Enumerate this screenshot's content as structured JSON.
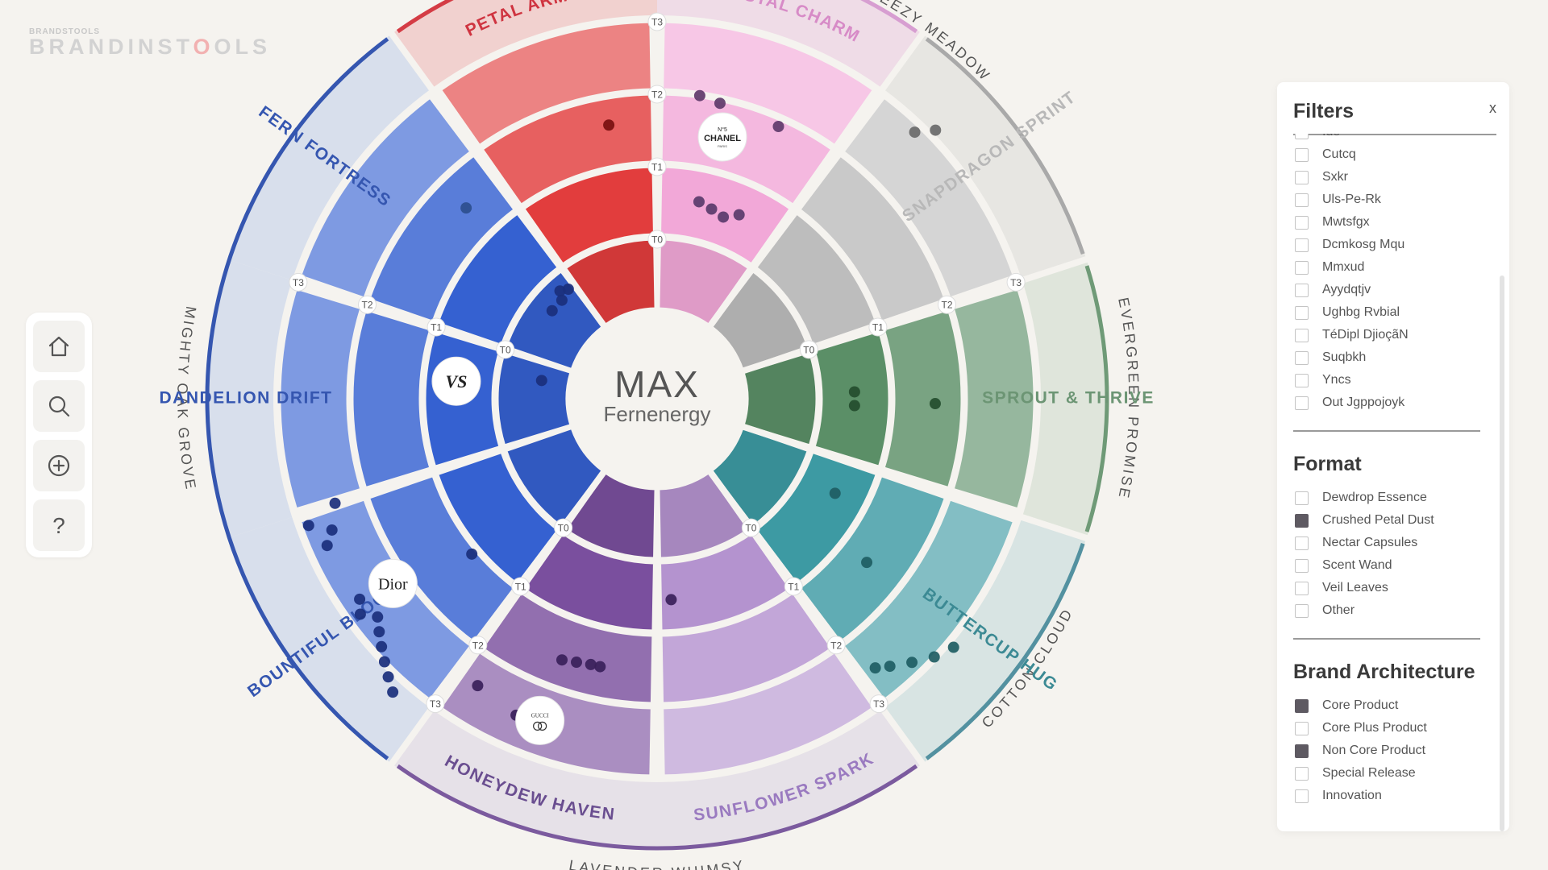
{
  "logo": {
    "top_text": "BRANDSTOOLS",
    "prefix": "BRANDINST",
    "accent": "O",
    "suffix": "OLS"
  },
  "nav": {
    "items": [
      {
        "icon": "home-icon"
      },
      {
        "icon": "search-icon"
      },
      {
        "icon": "plus-circle-icon"
      },
      {
        "icon": "help-icon"
      }
    ]
  },
  "wheel": {
    "center_title": "MAX",
    "center_subtitle": "Fernenergy",
    "tiers": [
      "T0",
      "T1",
      "T2",
      "T3"
    ],
    "outer_labels": [
      "MIGHTY OAK GROVE",
      "BREEZY MEADOW",
      "EVERGREEN PROMISE",
      "COTTON CLOUD",
      "LAVENDER WHIMSY"
    ],
    "inner_labels": [
      "PETAL ARMOR",
      "CRYSTAL CHARM",
      "SNAPDRAGON SPRINT",
      "SPROUT & THRIVE",
      "BUTTERCUP HUG",
      "SUNFLOWER SPARK",
      "HONEYDEW HAVEN",
      "BOUNTIFUL BLOOM",
      "DANDELION DRIFT",
      "FERN FORTRESS"
    ],
    "logos": [
      "CHANEL",
      "N°5",
      "PARIS",
      "VS",
      "Dior",
      "GUCCI"
    ],
    "colors": {
      "red": "#e23d3d",
      "pink": "#f2a8d8",
      "gray": "#bdbdbd",
      "green": "#5b8f67",
      "teal": "#3d9aa3",
      "purple": "#7a4f9e",
      "blue": "#3561d1"
    }
  },
  "filters": {
    "title": "Filters",
    "close": "x",
    "top_options": [
      {
        "label": "Ido",
        "checked": false
      },
      {
        "label": "Cutcq",
        "checked": false
      },
      {
        "label": "Sxkr",
        "checked": false
      },
      {
        "label": "Uls-Pe-Rk",
        "checked": false
      },
      {
        "label": "Mwtsfgx",
        "checked": false
      },
      {
        "label": "Dcmkosg Mqu",
        "checked": false
      },
      {
        "label": "Mmxud",
        "checked": false
      },
      {
        "label": "Ayydqtjv",
        "checked": false
      },
      {
        "label": "Ughbg Rvbial",
        "checked": false
      },
      {
        "label": "TéDipl DjiоçãN",
        "checked": false
      },
      {
        "label": "Suqbkh",
        "checked": false
      },
      {
        "label": "Yncs",
        "checked": false
      },
      {
        "label": "Out Jgppojoyk",
        "checked": false
      }
    ],
    "format": {
      "title": "Format",
      "options": [
        {
          "label": "Dewdrop Essence",
          "checked": false
        },
        {
          "label": "Crushed Petal Dust",
          "checked": true
        },
        {
          "label": "Nectar Capsules",
          "checked": false
        },
        {
          "label": "Scent Wand",
          "checked": false
        },
        {
          "label": "Veil Leaves",
          "checked": false
        },
        {
          "label": "Other",
          "checked": false
        }
      ]
    },
    "brand_architecture": {
      "title": "Brand Architecture",
      "options": [
        {
          "label": "Core Product",
          "checked": true
        },
        {
          "label": "Core Plus Product",
          "checked": false
        },
        {
          "label": "Non Core Product",
          "checked": true
        },
        {
          "label": "Special Release",
          "checked": false
        },
        {
          "label": "Innovation",
          "checked": false
        }
      ]
    }
  }
}
